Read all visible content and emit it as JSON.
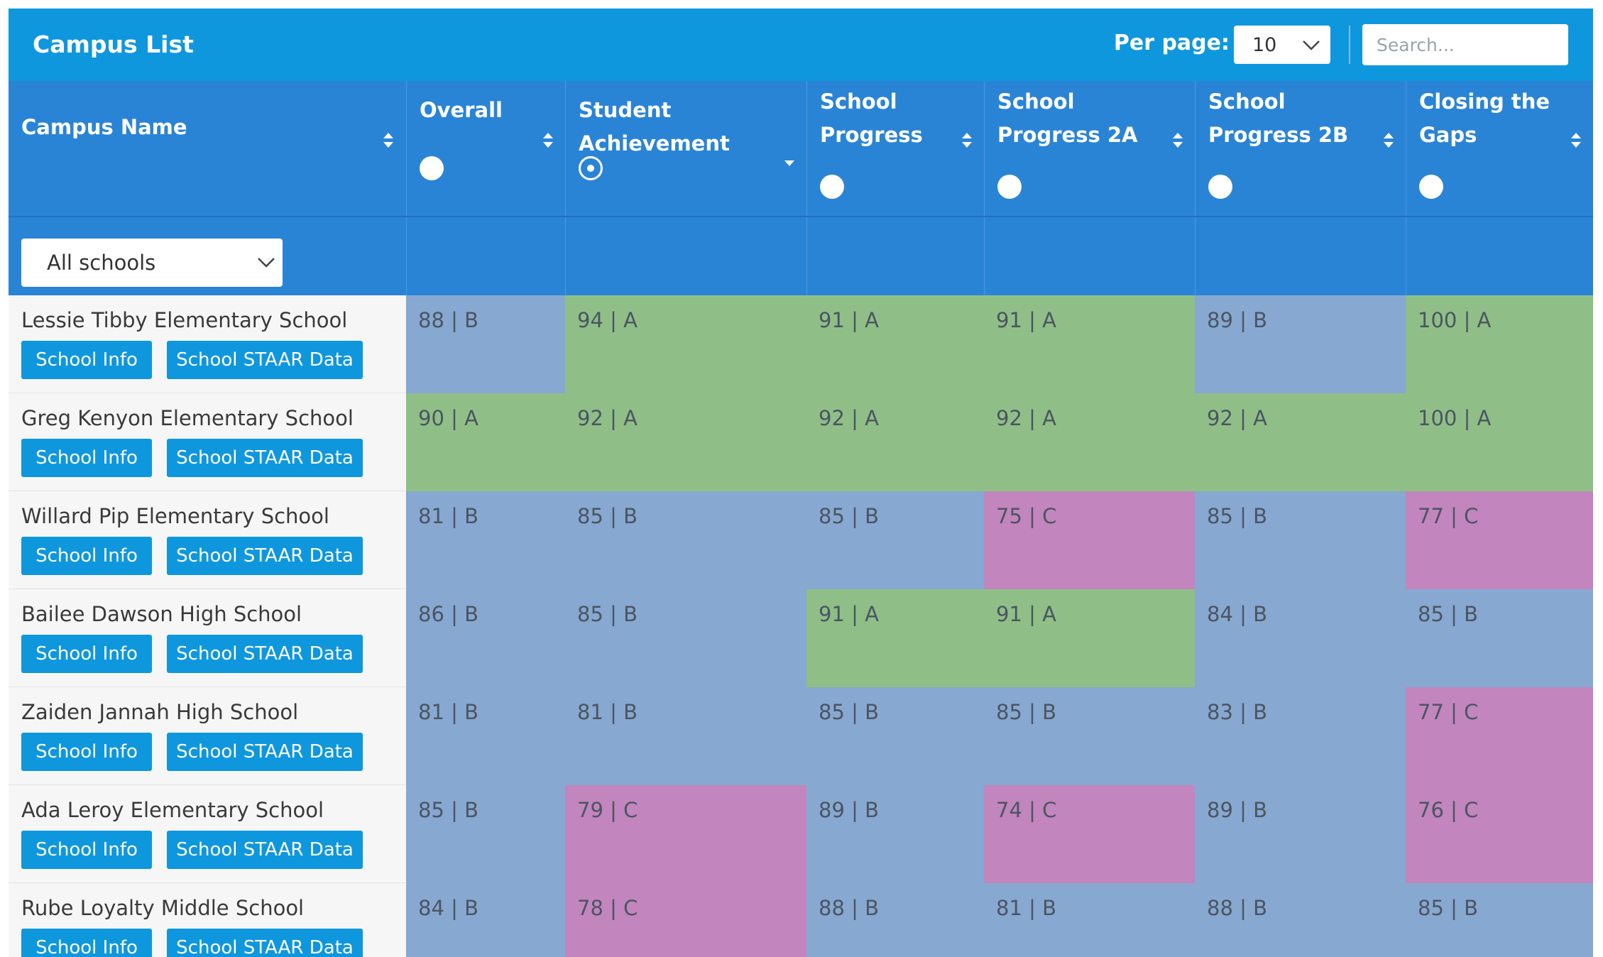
{
  "header": {
    "title": "Campus List",
    "per_page_label": "Per page:",
    "per_page_value": "10",
    "search_placeholder": "Search..."
  },
  "columns": [
    {
      "label": "Campus Name",
      "sortable": true
    },
    {
      "label": "Overall",
      "radio": "unselected"
    },
    {
      "label": "Student Achievement",
      "radio": "selected",
      "sort": "descending"
    },
    {
      "label": "School Progress",
      "radio": "unselected"
    },
    {
      "label": "School Progress 2A",
      "radio": "unselected"
    },
    {
      "label": "School Progress 2B",
      "radio": "unselected"
    },
    {
      "label": "Closing the Gaps",
      "radio": "unselected"
    }
  ],
  "filter": {
    "schools_value": "All schools"
  },
  "buttons": {
    "info_label": "School Info",
    "staar_label": "School STAAR Data"
  },
  "colors": {
    "topbar": "#0f97de",
    "header": "#2a84d6",
    "grade_A": "#8fbf87",
    "grade_B": "#87a8d0",
    "grade_C": "#c285be",
    "button": "#0f97de"
  },
  "rows": [
    {
      "name": "Lessie Tibby Elementary School",
      "scores": [
        "88 | B",
        "94 | A",
        "91 | A",
        "91 | A",
        "89 | B",
        "100 | A"
      ]
    },
    {
      "name": "Greg Kenyon Elementary School",
      "scores": [
        "90 | A",
        "92 | A",
        "92 | A",
        "92 | A",
        "92 | A",
        "100 | A"
      ]
    },
    {
      "name": "Willard Pip Elementary School",
      "scores": [
        "81 | B",
        "85 | B",
        "85 | B",
        "75 | C",
        "85 | B",
        "77 | C"
      ]
    },
    {
      "name": "Bailee Dawson High School",
      "scores": [
        "86 | B",
        "85 | B",
        "91 | A",
        "91 | A",
        "84 | B",
        "85 | B"
      ]
    },
    {
      "name": "Zaiden Jannah High School",
      "scores": [
        "81 | B",
        "81 | B",
        "85 | B",
        "85 | B",
        "83 | B",
        "77 | C"
      ]
    },
    {
      "name": "Ada Leroy Elementary School",
      "scores": [
        "85 | B",
        "79 | C",
        "89 | B",
        "74 | C",
        "89 | B",
        "76 | C"
      ]
    },
    {
      "name": "Rube Loyalty Middle School",
      "scores": [
        "84 | B",
        "78 | C",
        "88 | B",
        "81 | B",
        "88 | B",
        "85 | B"
      ]
    }
  ]
}
